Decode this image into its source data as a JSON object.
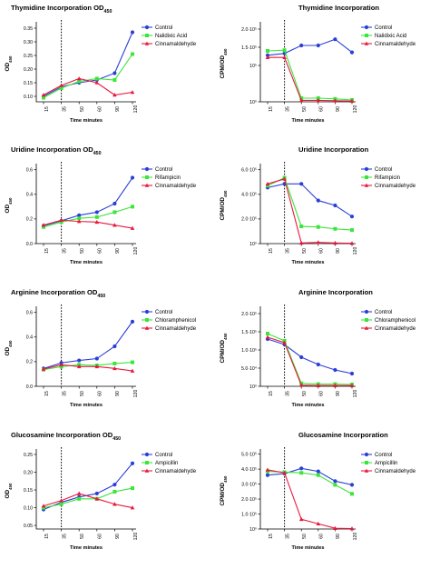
{
  "colors": {
    "blue": "#2b3fd6",
    "green": "#39e639",
    "red": "#e8183c"
  },
  "chart_data": [
    {
      "type": "line",
      "title": "Thymidine Incorporation OD",
      "title_sub": "450",
      "ylabel": "OD",
      "ylabel_sub": "450",
      "xlabel": "Time minutes",
      "categories": [
        "15",
        "35",
        "50",
        "60",
        "90",
        "120"
      ],
      "y_ticks": [
        "0.10",
        "0.15",
        "0.20",
        "0.25",
        "0.30",
        "0.35"
      ],
      "y_tick_values": [
        0.1,
        0.15,
        0.2,
        0.25,
        0.3,
        0.35
      ],
      "ylim": [
        0.08,
        0.36
      ],
      "log_scale": false,
      "dashed_line_at": "35",
      "series": [
        {
          "name": "Control",
          "color": "blue",
          "marker": "circle",
          "values": [
            0.1,
            0.135,
            0.15,
            0.16,
            0.185,
            0.335
          ]
        },
        {
          "name": "Nalidixic Acid",
          "color": "green",
          "marker": "square",
          "values": [
            0.095,
            0.13,
            0.155,
            0.165,
            0.16,
            0.255
          ]
        },
        {
          "name": "Cinnamaldehyde",
          "color": "red",
          "marker": "triangle",
          "values": [
            0.105,
            0.14,
            0.165,
            0.15,
            0.105,
            0.115
          ]
        }
      ]
    },
    {
      "type": "line",
      "title": "Thymidine Incorporation",
      "ylabel": "CPM/OD",
      "ylabel_sub": "450",
      "xlabel": "Time minutes",
      "categories": [
        "15",
        "35",
        "50",
        "60",
        "90",
        "120"
      ],
      "y_ticks": [
        "10⁰",
        "10⁵",
        "1.5·10⁵",
        "2.0·10⁵"
      ],
      "y_tick_values": [
        0.0,
        1.0,
        1.5,
        2.0
      ],
      "ylim": [
        0,
        2.1
      ],
      "log_scale": false,
      "dashed_line_at": "35",
      "series": [
        {
          "name": "Control",
          "color": "blue",
          "marker": "circle",
          "values": [
            1.28,
            1.33,
            1.55,
            1.55,
            1.72,
            1.36
          ]
        },
        {
          "name": "Nalidixic Acid",
          "color": "green",
          "marker": "square",
          "values": [
            1.4,
            1.42,
            0.1,
            0.1,
            0.08,
            0.05
          ]
        },
        {
          "name": "Cinnamaldehyde",
          "color": "red",
          "marker": "triangle",
          "values": [
            1.22,
            1.22,
            0.04,
            0.04,
            0.03,
            0.02
          ]
        }
      ]
    },
    {
      "type": "line",
      "title": "Uridine Incorporation OD",
      "title_sub": "450",
      "ylabel": "OD",
      "ylabel_sub": "450",
      "xlabel": "Time minutes",
      "categories": [
        "15",
        "35",
        "50",
        "60",
        "90",
        "120"
      ],
      "y_ticks": [
        "0.0",
        "0.2",
        "0.4",
        "0.6"
      ],
      "y_tick_values": [
        0.0,
        0.2,
        0.4,
        0.6
      ],
      "ylim": [
        0,
        0.62
      ],
      "log_scale": false,
      "dashed_line_at": "35",
      "series": [
        {
          "name": "Control",
          "color": "blue",
          "marker": "circle",
          "values": [
            0.145,
            0.185,
            0.23,
            0.255,
            0.325,
            0.535
          ]
        },
        {
          "name": "Rifampicin",
          "color": "green",
          "marker": "square",
          "values": [
            0.135,
            0.175,
            0.205,
            0.215,
            0.255,
            0.3
          ]
        },
        {
          "name": "Cinnamaldehyde",
          "color": "red",
          "marker": "triangle",
          "values": [
            0.15,
            0.19,
            0.18,
            0.175,
            0.15,
            0.125
          ]
        }
      ]
    },
    {
      "type": "line",
      "title": "Uridine Incorporation",
      "ylabel": "CPM/OD",
      "ylabel_sub": "450",
      "xlabel": "Time minutes",
      "categories": [
        "15",
        "35",
        "50",
        "60",
        "90",
        "120"
      ],
      "y_ticks": [
        "10⁰",
        "2.0·10⁵",
        "4.0·10⁵",
        "6.0·10⁵"
      ],
      "y_tick_values": [
        0.0,
        2.0,
        4.0,
        6.0
      ],
      "ylim": [
        0,
        6.2
      ],
      "log_scale": false,
      "dashed_line_at": "35",
      "series": [
        {
          "name": "Control",
          "color": "blue",
          "marker": "circle",
          "values": [
            4.55,
            4.85,
            4.85,
            3.5,
            3.1,
            2.2
          ]
        },
        {
          "name": "Rifampicin",
          "color": "green",
          "marker": "square",
          "values": [
            4.7,
            5.35,
            1.4,
            1.35,
            1.2,
            1.1
          ]
        },
        {
          "name": "Cinnamaldehyde",
          "color": "red",
          "marker": "triangle",
          "values": [
            4.85,
            5.25,
            0.05,
            0.1,
            0.05,
            0.03
          ]
        }
      ]
    },
    {
      "type": "line",
      "title": "Arginine Incorporation OD",
      "title_sub": "450",
      "ylabel": "OD",
      "ylabel_sub": "450",
      "xlabel": "Time minutes",
      "categories": [
        "15",
        "35",
        "50",
        "60",
        "90",
        "120"
      ],
      "y_ticks": [
        "0.0",
        "0.2",
        "0.4",
        "0.6"
      ],
      "y_tick_values": [
        0.0,
        0.2,
        0.4,
        0.6
      ],
      "ylim": [
        0,
        0.62
      ],
      "log_scale": false,
      "dashed_line_at": "35",
      "series": [
        {
          "name": "Control",
          "color": "blue",
          "marker": "circle",
          "values": [
            0.145,
            0.19,
            0.21,
            0.225,
            0.325,
            0.525
          ]
        },
        {
          "name": "Chloramphenicol",
          "color": "green",
          "marker": "square",
          "values": [
            0.135,
            0.16,
            0.175,
            0.17,
            0.185,
            0.195
          ]
        },
        {
          "name": "Cinnamaldehyde",
          "color": "red",
          "marker": "triangle",
          "values": [
            0.14,
            0.175,
            0.16,
            0.16,
            0.145,
            0.125
          ]
        }
      ]
    },
    {
      "type": "line",
      "title": "Arginine Incorporation",
      "ylabel": "CPM/OD",
      "ylabel_sub": "450",
      "xlabel": "Time minutes",
      "categories": [
        "15",
        "35",
        "50",
        "60",
        "90",
        "120"
      ],
      "y_ticks": [
        "10⁰",
        "5.0·10⁴",
        "1.0·10⁵",
        "1.5·10⁵",
        "2.0·10⁵"
      ],
      "y_tick_values": [
        0.0,
        0.5,
        1.0,
        1.5,
        2.0
      ],
      "ylim": [
        0,
        2.1
      ],
      "log_scale": false,
      "dashed_line_at": "35",
      "series": [
        {
          "name": "Control",
          "color": "blue",
          "marker": "circle",
          "values": [
            1.3,
            1.15,
            0.8,
            0.6,
            0.45,
            0.35
          ]
        },
        {
          "name": "Chloramphenicol",
          "color": "green",
          "marker": "square",
          "values": [
            1.45,
            1.25,
            0.08,
            0.06,
            0.06,
            0.05
          ]
        },
        {
          "name": "Cinnamaldehyde",
          "color": "red",
          "marker": "triangle",
          "values": [
            1.35,
            1.2,
            0.03,
            0.02,
            0.02,
            0.02
          ]
        }
      ]
    },
    {
      "type": "line",
      "title": "Glucosamine Incorporation OD",
      "title_sub": "450",
      "ylabel": "OD",
      "ylabel_sub": "450",
      "xlabel": "Time minutes",
      "categories": [
        "15",
        "35",
        "50",
        "60",
        "90",
        "120"
      ],
      "y_ticks": [
        "0.05",
        "0.10",
        "0.15",
        "0.20",
        "0.25"
      ],
      "y_tick_values": [
        0.05,
        0.1,
        0.15,
        0.2,
        0.25
      ],
      "ylim": [
        0.04,
        0.255
      ],
      "log_scale": false,
      "dashed_line_at": "35",
      "series": [
        {
          "name": "Control",
          "color": "blue",
          "marker": "circle",
          "values": [
            0.095,
            0.115,
            0.13,
            0.14,
            0.165,
            0.225
          ]
        },
        {
          "name": "Ampicillin",
          "color": "green",
          "marker": "square",
          "values": [
            0.1,
            0.11,
            0.125,
            0.125,
            0.145,
            0.155
          ]
        },
        {
          "name": "Cinnamaldehyde",
          "color": "red",
          "marker": "triangle",
          "values": [
            0.105,
            0.12,
            0.14,
            0.125,
            0.11,
            0.1
          ]
        }
      ]
    },
    {
      "type": "line",
      "title": "Glucosamine Incorporation",
      "ylabel": "CPM/OD",
      "ylabel_sub": "450",
      "xlabel": "Time minutes",
      "categories": [
        "15",
        "35",
        "50",
        "60",
        "90",
        "120"
      ],
      "y_ticks": [
        "10⁰",
        "1.0·10⁵",
        "2.0·10⁵",
        "3.0·10⁵",
        "4.0·10⁵",
        "5.0·10⁵"
      ],
      "y_tick_values": [
        0,
        1,
        2,
        3,
        4,
        5
      ],
      "ylim": [
        0,
        5.1
      ],
      "log_scale": false,
      "dashed_line_at": "35",
      "series": [
        {
          "name": "Control",
          "color": "blue",
          "marker": "circle",
          "values": [
            3.6,
            3.7,
            4.05,
            3.85,
            3.2,
            2.95
          ]
        },
        {
          "name": "Ampicillin",
          "color": "green",
          "marker": "square",
          "values": [
            3.85,
            3.8,
            3.75,
            3.6,
            2.95,
            2.35
          ]
        },
        {
          "name": "Cinnamaldehyde",
          "color": "red",
          "marker": "triangle",
          "values": [
            3.95,
            3.75,
            0.65,
            0.35,
            0.05,
            0.03
          ]
        }
      ]
    }
  ]
}
